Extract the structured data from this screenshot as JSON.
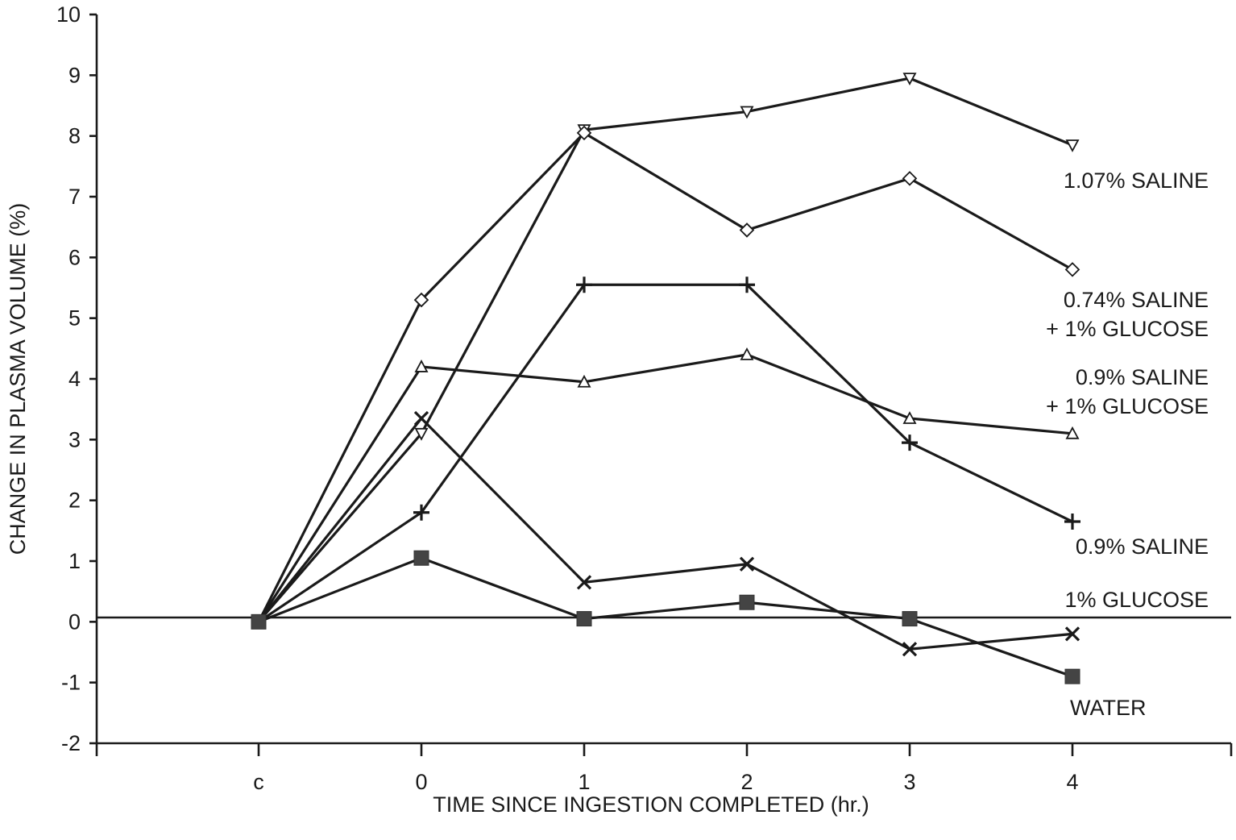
{
  "chart_data": {
    "type": "line",
    "xlabel": "TIME SINCE INGESTION COMPLETED (hr.)",
    "ylabel": "CHANGE IN PLASMA VOLUME (%)",
    "categories": [
      "c",
      "0",
      "1",
      "2",
      "3",
      "4"
    ],
    "ylim": [
      -2,
      10
    ],
    "yticks": [
      -2,
      -1,
      0,
      1,
      2,
      3,
      4,
      5,
      6,
      7,
      8,
      9,
      10
    ],
    "grid": false,
    "zero_line": true,
    "series": [
      {
        "name": "1.07% SALINE",
        "marker": "triangle-down",
        "values": [
          0,
          3.1,
          8.1,
          8.4,
          8.95,
          7.85
        ]
      },
      {
        "name": "0.74% SALINE + 1% GLUCOSE",
        "marker": "diamond",
        "values": [
          0,
          5.3,
          8.05,
          6.45,
          7.3,
          5.8
        ]
      },
      {
        "name": "0.9% SALINE + 1% GLUCOSE",
        "marker": "triangle-up",
        "values": [
          0,
          4.2,
          3.95,
          4.4,
          3.35,
          3.1
        ]
      },
      {
        "name": "0.9% SALINE",
        "marker": "plus",
        "values": [
          0,
          1.8,
          5.55,
          5.55,
          2.95,
          1.65
        ]
      },
      {
        "name": "1% GLUCOSE",
        "marker": "x",
        "values": [
          0,
          3.35,
          0.65,
          0.95,
          -0.45,
          -0.2
        ]
      },
      {
        "name": "WATER",
        "marker": "square",
        "values": [
          0,
          1.05,
          0.05,
          0.32,
          0.05,
          -0.9
        ]
      }
    ],
    "annotations": [
      {
        "series": "1.07% SALINE",
        "lines": [
          "1.07% SALINE"
        ]
      },
      {
        "series": "0.74% SALINE + 1% GLUCOSE",
        "lines": [
          "0.74% SALINE",
          "+ 1% GLUCOSE"
        ]
      },
      {
        "series": "0.9% SALINE + 1% GLUCOSE",
        "lines": [
          "0.9% SALINE",
          "+ 1% GLUCOSE"
        ]
      },
      {
        "series": "0.9% SALINE",
        "lines": [
          "0.9% SALINE"
        ]
      },
      {
        "series": "1% GLUCOSE",
        "lines": [
          "1% GLUCOSE"
        ]
      },
      {
        "series": "WATER",
        "lines": [
          "WATER"
        ]
      }
    ]
  }
}
